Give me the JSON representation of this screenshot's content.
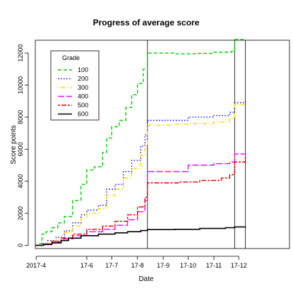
{
  "chart_data": {
    "type": "line",
    "title": "Progress of average score",
    "xlabel": "Date",
    "ylabel": "Score points",
    "x_ticks": [
      "2017-4",
      "17-6",
      "17-7",
      "17-8",
      "17-9",
      "17-10",
      "17-11",
      "17-12"
    ],
    "y_ticks": [
      "0",
      "2000",
      "4000",
      "6000",
      "8000",
      "10000",
      "12000"
    ],
    "xlim": [
      "2017-03-31",
      "2018-01-31"
    ],
    "ylim": [
      -200,
      12800
    ],
    "grid": false,
    "legend": {
      "title": "Grade",
      "position": "top-left"
    },
    "vlines": [
      "2017-08-13",
      "2017-11-26",
      "2017-12-09"
    ],
    "series": [
      {
        "name": "100",
        "color": "#00cc00",
        "dash": "dashed",
        "points": [
          [
            "2017-03-31",
            0
          ],
          [
            "2017-04-05",
            100
          ],
          [
            "2017-04-08",
            700
          ],
          [
            "2017-04-13",
            850
          ],
          [
            "2017-04-20",
            1100
          ],
          [
            "2017-04-27",
            1400
          ],
          [
            "2017-05-05",
            1800
          ],
          [
            "2017-05-15",
            2800
          ],
          [
            "2017-05-25",
            3800
          ],
          [
            "2017-06-01",
            4700
          ],
          [
            "2017-06-10",
            4900
          ],
          [
            "2017-06-20",
            5800
          ],
          [
            "2017-06-25",
            6700
          ],
          [
            "2017-07-01",
            7400
          ],
          [
            "2017-07-10",
            7800
          ],
          [
            "2017-07-18",
            8600
          ],
          [
            "2017-07-25",
            9400
          ],
          [
            "2017-08-01",
            10100
          ],
          [
            "2017-08-08",
            11000
          ],
          [
            "2017-08-13",
            12000
          ],
          [
            "2017-09-15",
            11950
          ],
          [
            "2017-10-10",
            11980
          ],
          [
            "2017-11-01",
            12050
          ],
          [
            "2017-11-22",
            12100
          ],
          [
            "2017-11-26",
            12850
          ],
          [
            "2017-12-09",
            12900
          ]
        ]
      },
      {
        "name": "200",
        "color": "#0000ff",
        "dash": "dotted",
        "points": [
          [
            "2017-03-31",
            0
          ],
          [
            "2017-04-08",
            100
          ],
          [
            "2017-04-15",
            300
          ],
          [
            "2017-04-25",
            500
          ],
          [
            "2017-05-05",
            900
          ],
          [
            "2017-05-15",
            1400
          ],
          [
            "2017-05-25",
            1900
          ],
          [
            "2017-06-01",
            2200
          ],
          [
            "2017-06-15",
            2500
          ],
          [
            "2017-06-25",
            3500
          ],
          [
            "2017-07-05",
            3800
          ],
          [
            "2017-07-15",
            4600
          ],
          [
            "2017-07-25",
            5300
          ],
          [
            "2017-08-05",
            6200
          ],
          [
            "2017-08-10",
            6900
          ],
          [
            "2017-08-13",
            7800
          ],
          [
            "2017-09-10",
            7800
          ],
          [
            "2017-10-01",
            8000
          ],
          [
            "2017-11-01",
            8100
          ],
          [
            "2017-11-20",
            8300
          ],
          [
            "2017-11-26",
            8900
          ],
          [
            "2017-12-09",
            9100
          ]
        ]
      },
      {
        "name": "300",
        "color": "#ffd700",
        "dash": "dotdash",
        "points": [
          [
            "2017-03-31",
            0
          ],
          [
            "2017-04-08",
            80
          ],
          [
            "2017-04-15",
            250
          ],
          [
            "2017-04-25",
            450
          ],
          [
            "2017-05-05",
            800
          ],
          [
            "2017-05-15",
            1200
          ],
          [
            "2017-05-25",
            1700
          ],
          [
            "2017-06-01",
            2000
          ],
          [
            "2017-06-15",
            2300
          ],
          [
            "2017-06-25",
            3100
          ],
          [
            "2017-07-05",
            3500
          ],
          [
            "2017-07-15",
            4200
          ],
          [
            "2017-07-25",
            4800
          ],
          [
            "2017-08-05",
            5600
          ],
          [
            "2017-08-10",
            6300
          ],
          [
            "2017-08-13",
            7500
          ],
          [
            "2017-09-10",
            7550
          ],
          [
            "2017-10-01",
            7600
          ],
          [
            "2017-11-01",
            7700
          ],
          [
            "2017-11-20",
            7900
          ],
          [
            "2017-11-26",
            8800
          ],
          [
            "2017-12-09",
            8850
          ]
        ]
      },
      {
        "name": "400",
        "color": "#ff00ff",
        "dash": "longdash",
        "points": [
          [
            "2017-03-31",
            0
          ],
          [
            "2017-04-10",
            80
          ],
          [
            "2017-04-20",
            200
          ],
          [
            "2017-05-01",
            400
          ],
          [
            "2017-05-15",
            600
          ],
          [
            "2017-06-01",
            850
          ],
          [
            "2017-06-20",
            1000
          ],
          [
            "2017-07-05",
            1250
          ],
          [
            "2017-07-20",
            1600
          ],
          [
            "2017-08-01",
            2100
          ],
          [
            "2017-08-10",
            2800
          ],
          [
            "2017-08-13",
            4600
          ],
          [
            "2017-09-15",
            4600
          ],
          [
            "2017-10-01",
            5000
          ],
          [
            "2017-11-01",
            5100
          ],
          [
            "2017-11-20",
            5200
          ],
          [
            "2017-11-26",
            5700
          ],
          [
            "2017-12-09",
            5750
          ]
        ]
      },
      {
        "name": "500",
        "color": "#dd0000",
        "dash": "twodash",
        "points": [
          [
            "2017-03-31",
            0
          ],
          [
            "2017-04-10",
            80
          ],
          [
            "2017-04-20",
            250
          ],
          [
            "2017-05-01",
            450
          ],
          [
            "2017-05-15",
            700
          ],
          [
            "2017-06-01",
            1000
          ],
          [
            "2017-06-20",
            1200
          ],
          [
            "2017-07-05",
            1500
          ],
          [
            "2017-07-20",
            1900
          ],
          [
            "2017-08-01",
            2400
          ],
          [
            "2017-08-10",
            3000
          ],
          [
            "2017-08-13",
            3900
          ],
          [
            "2017-09-20",
            3950
          ],
          [
            "2017-10-15",
            4050
          ],
          [
            "2017-11-10",
            4200
          ],
          [
            "2017-11-20",
            4400
          ],
          [
            "2017-11-26",
            5200
          ],
          [
            "2017-12-09",
            5600
          ]
        ]
      },
      {
        "name": "600",
        "color": "#000000",
        "dash": "solid",
        "points": [
          [
            "2017-03-31",
            0
          ],
          [
            "2017-04-10",
            50
          ],
          [
            "2017-04-20",
            150
          ],
          [
            "2017-05-01",
            300
          ],
          [
            "2017-05-10",
            450
          ],
          [
            "2017-05-25",
            600
          ],
          [
            "2017-06-15",
            700
          ],
          [
            "2017-07-05",
            780
          ],
          [
            "2017-07-20",
            850
          ],
          [
            "2017-08-05",
            920
          ],
          [
            "2017-08-13",
            980
          ],
          [
            "2017-09-15",
            1000
          ],
          [
            "2017-10-15",
            1050
          ],
          [
            "2017-11-15",
            1100
          ],
          [
            "2017-11-26",
            1150
          ],
          [
            "2017-12-09",
            1180
          ]
        ]
      }
    ]
  }
}
